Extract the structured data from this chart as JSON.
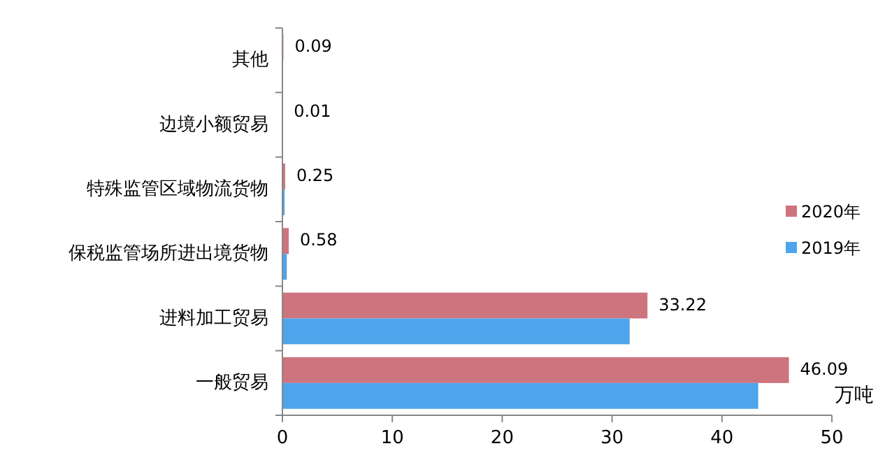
{
  "chart_data": {
    "type": "bar",
    "orientation": "horizontal",
    "xlabel": "万吨",
    "categories": [
      "其他",
      "边境小额贸易",
      "特殊监管区域物流货物",
      "保税监管场所进出境货物",
      "进料加工贸易",
      "一般贸易"
    ],
    "series": [
      {
        "name": "2020年",
        "color": "#cd747e",
        "values": [
          0.09,
          0.01,
          0.25,
          0.58,
          33.22,
          46.09
        ],
        "value_labels": [
          "0.09",
          "0.01",
          "0.25",
          "0.58",
          "33.22",
          "46.09"
        ]
      },
      {
        "name": "2019年",
        "color": "#4ea5eb",
        "values": [
          null,
          null,
          0.2,
          0.4,
          31.6,
          43.3
        ]
      }
    ],
    "xlim": [
      0,
      50
    ],
    "xticks": [
      0,
      10,
      20,
      30,
      40,
      50
    ],
    "grid": false,
    "legend": "right"
  }
}
